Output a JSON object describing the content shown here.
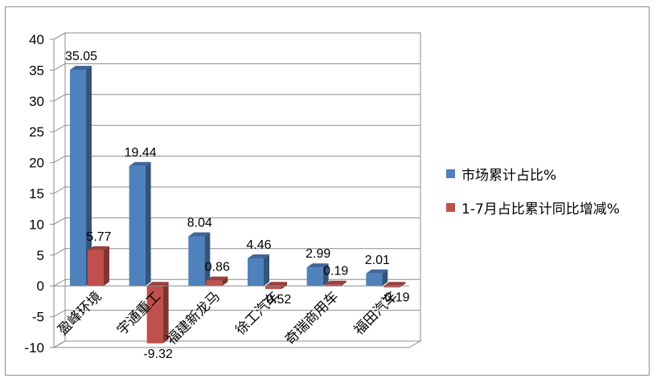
{
  "chart_data": {
    "type": "bar",
    "categories": [
      "盈峰环境",
      "宇通重工",
      "福建新龙马",
      "徐工汽车",
      "奇瑞商用车",
      "福田汽车"
    ],
    "series": [
      {
        "name": "市场累计占比%",
        "values": [
          35.05,
          19.44,
          8.04,
          4.46,
          2.99,
          2.01
        ],
        "labels": [
          "35.05",
          "19.44",
          "8.04",
          "4.46",
          "2.99",
          "2.01"
        ],
        "color": "#4f81bd"
      },
      {
        "name": "1-7月占比累计同比增减%",
        "values": [
          5.77,
          -9.32,
          0.86,
          -0.52,
          0.19,
          -0.19
        ],
        "labels": [
          "5.77",
          "-9.32",
          "0.86",
          "-0.52",
          "0.19",
          "-0.19"
        ],
        "color": "#c0504d"
      }
    ],
    "ylim": [
      -10,
      40
    ],
    "yticks": [
      "-10",
      "-5",
      "0",
      "5",
      "10",
      "15",
      "20",
      "25",
      "30",
      "35",
      "40"
    ],
    "grid": true,
    "legend_position": "right",
    "style": "3d-column"
  }
}
